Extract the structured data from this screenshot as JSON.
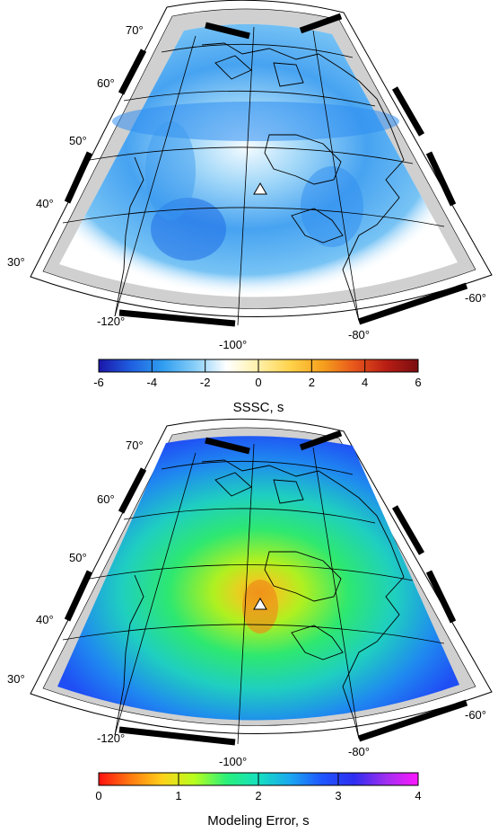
{
  "maps": [
    {
      "id": "sssc",
      "lat_labels": [
        "70°",
        "60°",
        "50°",
        "40°",
        "30°"
      ],
      "lon_labels": [
        "-120°",
        "-100°",
        "-80°",
        "-60°"
      ],
      "colorbar": {
        "ticks": [
          "-6",
          "-4",
          "-2",
          "0",
          "2",
          "4",
          "6"
        ],
        "colors": [
          "#1a16a8",
          "#1f5ee0",
          "#2f9df0",
          "#86cdf8",
          "#ffffff",
          "#fff0a8",
          "#ffd24a",
          "#f6a11d",
          "#e8561c",
          "#b81e14",
          "#7a0d10"
        ],
        "label": "SSSC, s"
      }
    },
    {
      "id": "modeling-error",
      "lat_labels": [
        "70°",
        "60°",
        "50°",
        "40°",
        "30°"
      ],
      "lon_labels": [
        "-120°",
        "-100°",
        "-80°",
        "-60°"
      ],
      "colorbar": {
        "ticks": [
          "0",
          "1",
          "2",
          "3",
          "4"
        ],
        "colors": [
          "#ff1010",
          "#ff7a10",
          "#ffd21a",
          "#b6ff1e",
          "#2af07a",
          "#15e0c0",
          "#1aa6f0",
          "#1f55ff",
          "#2e2ef0",
          "#a02ef0",
          "#ff18ff"
        ],
        "label": "Modeling Error, s"
      }
    }
  ]
}
